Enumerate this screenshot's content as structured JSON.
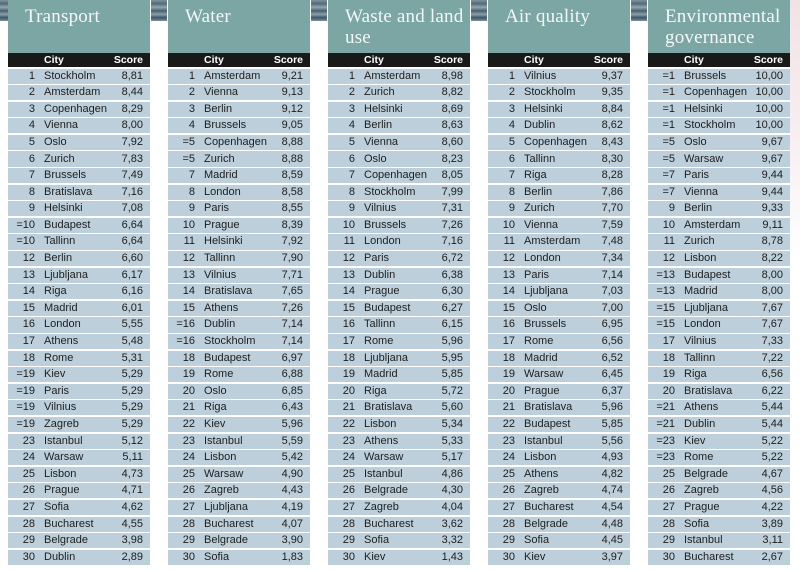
{
  "page": {
    "accent_teal": "#7BA6A3",
    "header_bar_black": "#191919",
    "row_blue": "#BCCFDA",
    "title_text_color": "#F4F8F7"
  },
  "columns": {
    "city": "City",
    "score": "Score"
  },
  "tables": [
    {
      "title": "Transport",
      "rows": [
        [
          "1",
          "Stockholm",
          "8,81"
        ],
        [
          "2",
          "Amsterdam",
          "8,44"
        ],
        [
          "3",
          "Copenhagen",
          "8,29"
        ],
        [
          "4",
          "Vienna",
          "8,00"
        ],
        [
          "5",
          "Oslo",
          "7,92"
        ],
        [
          "6",
          "Zurich",
          "7,83"
        ],
        [
          "7",
          "Brussels",
          "7,49"
        ],
        [
          "8",
          "Bratislava",
          "7,16"
        ],
        [
          "9",
          "Helsinki",
          "7,08"
        ],
        [
          "=10",
          "Budapest",
          "6,64"
        ],
        [
          "=10",
          "Tallinn",
          "6,64"
        ],
        [
          "12",
          "Berlin",
          "6,60"
        ],
        [
          "13",
          "Ljubljana",
          "6,17"
        ],
        [
          "14",
          "Riga",
          "6,16"
        ],
        [
          "15",
          "Madrid",
          "6,01"
        ],
        [
          "16",
          "London",
          "5,55"
        ],
        [
          "17",
          "Athens",
          "5,48"
        ],
        [
          "18",
          "Rome",
          "5,31"
        ],
        [
          "=19",
          "Kiev",
          "5,29"
        ],
        [
          "=19",
          "Paris",
          "5,29"
        ],
        [
          "=19",
          "Vilnius",
          "5,29"
        ],
        [
          "=19",
          "Zagreb",
          "5,29"
        ],
        [
          "23",
          "Istanbul",
          "5,12"
        ],
        [
          "24",
          "Warsaw",
          "5,11"
        ],
        [
          "25",
          "Lisbon",
          "4,73"
        ],
        [
          "26",
          "Prague",
          "4,71"
        ],
        [
          "27",
          "Sofia",
          "4,62"
        ],
        [
          "28",
          "Bucharest",
          "4,55"
        ],
        [
          "29",
          "Belgrade",
          "3,98"
        ],
        [
          "30",
          "Dublin",
          "2,89"
        ]
      ]
    },
    {
      "title": "Water",
      "rows": [
        [
          "1",
          "Amsterdam",
          "9,21"
        ],
        [
          "2",
          "Vienna",
          "9,13"
        ],
        [
          "3",
          "Berlin",
          "9,12"
        ],
        [
          "4",
          "Brussels",
          "9,05"
        ],
        [
          "=5",
          "Copenhagen",
          "8,88"
        ],
        [
          "=5",
          "Zurich",
          "8,88"
        ],
        [
          "7",
          "Madrid",
          "8,59"
        ],
        [
          "8",
          "London",
          "8,58"
        ],
        [
          "9",
          "Paris",
          "8,55"
        ],
        [
          "10",
          "Prague",
          "8,39"
        ],
        [
          "11",
          "Helsinki",
          "7,92"
        ],
        [
          "12",
          "Tallinn",
          "7,90"
        ],
        [
          "13",
          "Vilnius",
          "7,71"
        ],
        [
          "14",
          "Bratislava",
          "7,65"
        ],
        [
          "15",
          "Athens",
          "7,26"
        ],
        [
          "=16",
          "Dublin",
          "7,14"
        ],
        [
          "=16",
          "Stockholm",
          "7,14"
        ],
        [
          "18",
          "Budapest",
          "6,97"
        ],
        [
          "19",
          "Rome",
          "6,88"
        ],
        [
          "20",
          "Oslo",
          "6,85"
        ],
        [
          "21",
          "Riga",
          "6,43"
        ],
        [
          "22",
          "Kiev",
          "5,96"
        ],
        [
          "23",
          "Istanbul",
          "5,59"
        ],
        [
          "24",
          "Lisbon",
          "5,42"
        ],
        [
          "25",
          "Warsaw",
          "4,90"
        ],
        [
          "26",
          "Zagreb",
          "4,43"
        ],
        [
          "27",
          "Ljubljana",
          "4,19"
        ],
        [
          "28",
          "Bucharest",
          "4,07"
        ],
        [
          "29",
          "Belgrade",
          "3,90"
        ],
        [
          "30",
          "Sofia",
          "1,83"
        ]
      ]
    },
    {
      "title": "Waste and land use",
      "rows": [
        [
          "1",
          "Amsterdam",
          "8,98"
        ],
        [
          "2",
          "Zurich",
          "8,82"
        ],
        [
          "3",
          "Helsinki",
          "8,69"
        ],
        [
          "4",
          "Berlin",
          "8,63"
        ],
        [
          "5",
          "Vienna",
          "8,60"
        ],
        [
          "6",
          "Oslo",
          "8,23"
        ],
        [
          "7",
          "Copenhagen",
          "8,05"
        ],
        [
          "8",
          "Stockholm",
          "7,99"
        ],
        [
          "9",
          "Vilnius",
          "7,31"
        ],
        [
          "10",
          "Brussels",
          "7,26"
        ],
        [
          "11",
          "London",
          "7,16"
        ],
        [
          "12",
          "Paris",
          "6,72"
        ],
        [
          "13",
          "Dublin",
          "6,38"
        ],
        [
          "14",
          "Prague",
          "6,30"
        ],
        [
          "15",
          "Budapest",
          "6,27"
        ],
        [
          "16",
          "Tallinn",
          "6,15"
        ],
        [
          "17",
          "Rome",
          "5,96"
        ],
        [
          "18",
          "Ljubljana",
          "5,95"
        ],
        [
          "19",
          "Madrid",
          "5,85"
        ],
        [
          "20",
          "Riga",
          "5,72"
        ],
        [
          "21",
          "Bratislava",
          "5,60"
        ],
        [
          "22",
          "Lisbon",
          "5,34"
        ],
        [
          "23",
          "Athens",
          "5,33"
        ],
        [
          "24",
          "Warsaw",
          "5,17"
        ],
        [
          "25",
          "Istanbul",
          "4,86"
        ],
        [
          "26",
          "Belgrade",
          "4,30"
        ],
        [
          "27",
          "Zagreb",
          "4,04"
        ],
        [
          "28",
          "Bucharest",
          "3,62"
        ],
        [
          "29",
          "Sofia",
          "3,32"
        ],
        [
          "30",
          "Kiev",
          "1,43"
        ]
      ]
    },
    {
      "title": "Air quality",
      "rows": [
        [
          "1",
          "Vilnius",
          "9,37"
        ],
        [
          "2",
          "Stockholm",
          "9,35"
        ],
        [
          "3",
          "Helsinki",
          "8,84"
        ],
        [
          "4",
          "Dublin",
          "8,62"
        ],
        [
          "5",
          "Copenhagen",
          "8,43"
        ],
        [
          "6",
          "Tallinn",
          "8,30"
        ],
        [
          "7",
          "Riga",
          "8,28"
        ],
        [
          "8",
          "Berlin",
          "7,86"
        ],
        [
          "9",
          "Zurich",
          "7,70"
        ],
        [
          "10",
          "Vienna",
          "7,59"
        ],
        [
          "11",
          "Amsterdam",
          "7,48"
        ],
        [
          "12",
          "London",
          "7,34"
        ],
        [
          "13",
          "Paris",
          "7,14"
        ],
        [
          "14",
          "Ljubljana",
          "7,03"
        ],
        [
          "15",
          "Oslo",
          "7,00"
        ],
        [
          "16",
          "Brussels",
          "6,95"
        ],
        [
          "17",
          "Rome",
          "6,56"
        ],
        [
          "18",
          "Madrid",
          "6,52"
        ],
        [
          "19",
          "Warsaw",
          "6,45"
        ],
        [
          "20",
          "Prague",
          "6,37"
        ],
        [
          "21",
          "Bratislava",
          "5,96"
        ],
        [
          "22",
          "Budapest",
          "5,85"
        ],
        [
          "23",
          "Istanbul",
          "5,56"
        ],
        [
          "24",
          "Lisbon",
          "4,93"
        ],
        [
          "25",
          "Athens",
          "4,82"
        ],
        [
          "26",
          "Zagreb",
          "4,74"
        ],
        [
          "27",
          "Bucharest",
          "4,54"
        ],
        [
          "28",
          "Belgrade",
          "4,48"
        ],
        [
          "29",
          "Sofia",
          "4,45"
        ],
        [
          "30",
          "Kiev",
          "3,97"
        ]
      ]
    },
    {
      "title": "Environmental governance",
      "rows": [
        [
          "=1",
          "Brussels",
          "10,00"
        ],
        [
          "=1",
          "Copenhagen",
          "10,00"
        ],
        [
          "=1",
          "Helsinki",
          "10,00"
        ],
        [
          "=1",
          "Stockholm",
          "10,00"
        ],
        [
          "=5",
          "Oslo",
          "9,67"
        ],
        [
          "=5",
          "Warsaw",
          "9,67"
        ],
        [
          "=7",
          "Paris",
          "9,44"
        ],
        [
          "=7",
          "Vienna",
          "9,44"
        ],
        [
          "9",
          "Berlin",
          "9,33"
        ],
        [
          "10",
          "Amsterdam",
          "9,11"
        ],
        [
          "11",
          "Zurich",
          "8,78"
        ],
        [
          "12",
          "Lisbon",
          "8,22"
        ],
        [
          "=13",
          "Budapest",
          "8,00"
        ],
        [
          "=13",
          "Madrid",
          "8,00"
        ],
        [
          "=15",
          "Ljubljana",
          "7,67"
        ],
        [
          "=15",
          "London",
          "7,67"
        ],
        [
          "17",
          "Vilnius",
          "7,33"
        ],
        [
          "18",
          "Tallinn",
          "7,22"
        ],
        [
          "19",
          "Riga",
          "6,56"
        ],
        [
          "20",
          "Bratislava",
          "6,22"
        ],
        [
          "=21",
          "Athens",
          "5,44"
        ],
        [
          "=21",
          "Dublin",
          "5,44"
        ],
        [
          "=23",
          "Kiev",
          "5,22"
        ],
        [
          "=23",
          "Rome",
          "5,22"
        ],
        [
          "25",
          "Belgrade",
          "4,67"
        ],
        [
          "26",
          "Zagreb",
          "4,56"
        ],
        [
          "27",
          "Prague",
          "4,22"
        ],
        [
          "28",
          "Sofia",
          "3,89"
        ],
        [
          "29",
          "Istanbul",
          "3,11"
        ],
        [
          "30",
          "Bucharest",
          "2,67"
        ]
      ]
    }
  ]
}
